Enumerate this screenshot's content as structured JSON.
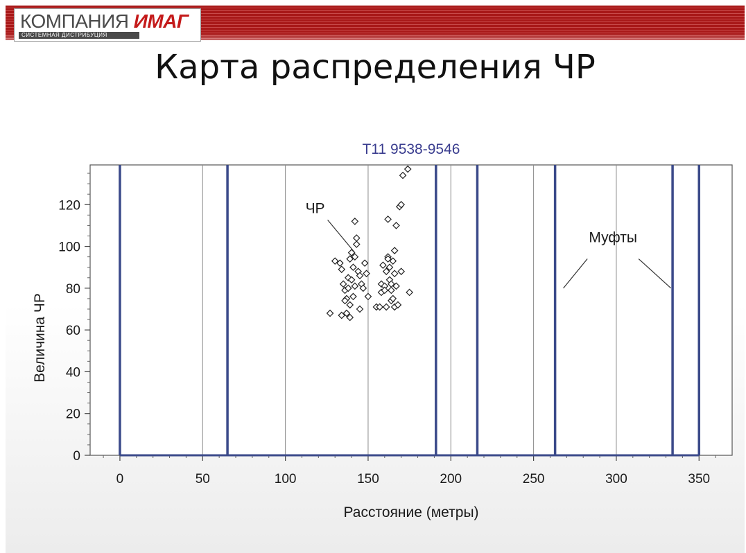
{
  "header": {
    "logo_word1": "КОМПАНИЯ",
    "logo_word2": "ИМАГ",
    "logo_tagline": "СИСТЕМНАЯ ДИСТРИБУЦИЯ",
    "accent_color": "#a81818"
  },
  "slide": {
    "title": "Карта распределения ЧР"
  },
  "chart_data": {
    "type": "scatter",
    "title": "T11 9538-9546",
    "xlabel": "Расстояние (метры)",
    "ylabel": "Величина ЧР",
    "xlim": [
      -18,
      370
    ],
    "ylim": [
      0,
      139
    ],
    "xticks": [
      0,
      50,
      100,
      150,
      200,
      250,
      300,
      350
    ],
    "yticks": [
      0,
      20,
      40,
      60,
      80,
      100,
      120
    ],
    "grid_x": true,
    "grid_y": false,
    "series": [
      {
        "name": "ЧР",
        "marker": "diamond",
        "color": "#222222",
        "points": [
          [
            130,
            93
          ],
          [
            133,
            92
          ],
          [
            134,
            89
          ],
          [
            135,
            82
          ],
          [
            136,
            79
          ],
          [
            137,
            75
          ],
          [
            137,
            68
          ],
          [
            127,
            68
          ],
          [
            138,
            85
          ],
          [
            138,
            80
          ],
          [
            139,
            94
          ],
          [
            139,
            72
          ],
          [
            140,
            97
          ],
          [
            140,
            84
          ],
          [
            141,
            90
          ],
          [
            141,
            76
          ],
          [
            142,
            112
          ],
          [
            142,
            95
          ],
          [
            142,
            81
          ],
          [
            143,
            104
          ],
          [
            143,
            101
          ],
          [
            144,
            88
          ],
          [
            145,
            86
          ],
          [
            145,
            70
          ],
          [
            146,
            82
          ],
          [
            147,
            80
          ],
          [
            148,
            92
          ],
          [
            149,
            87
          ],
          [
            150,
            76
          ],
          [
            134,
            67
          ],
          [
            136,
            74
          ],
          [
            139,
            66
          ],
          [
            155,
            71
          ],
          [
            157,
            71
          ],
          [
            158,
            78
          ],
          [
            158,
            82
          ],
          [
            159,
            91
          ],
          [
            160,
            81
          ],
          [
            160,
            79
          ],
          [
            161,
            88
          ],
          [
            161,
            71
          ],
          [
            162,
            113
          ],
          [
            162,
            95
          ],
          [
            162,
            94
          ],
          [
            163,
            90
          ],
          [
            163,
            84
          ],
          [
            164,
            82
          ],
          [
            164,
            79
          ],
          [
            164,
            74
          ],
          [
            165,
            93
          ],
          [
            165,
            75
          ],
          [
            166,
            87
          ],
          [
            166,
            98
          ],
          [
            166,
            71
          ],
          [
            167,
            110
          ],
          [
            167,
            81
          ],
          [
            168,
            72
          ],
          [
            169,
            119
          ],
          [
            170,
            120
          ],
          [
            170,
            88
          ],
          [
            171,
            134
          ],
          [
            174,
            137
          ],
          [
            175,
            78
          ]
        ]
      }
    ],
    "vertical_markers": {
      "label": "Муфты",
      "color": "#3b4a8a",
      "x": [
        0,
        65,
        191,
        216,
        263,
        334,
        350
      ]
    },
    "annotations": [
      {
        "text": "ЧР",
        "x": 118,
        "y": 116,
        "points_to": [
          142,
          97
        ]
      },
      {
        "text": "Муфты",
        "x": 298,
        "y": 102,
        "points_to": [
          [
            268,
            80
          ],
          [
            333,
            80
          ]
        ]
      }
    ]
  }
}
